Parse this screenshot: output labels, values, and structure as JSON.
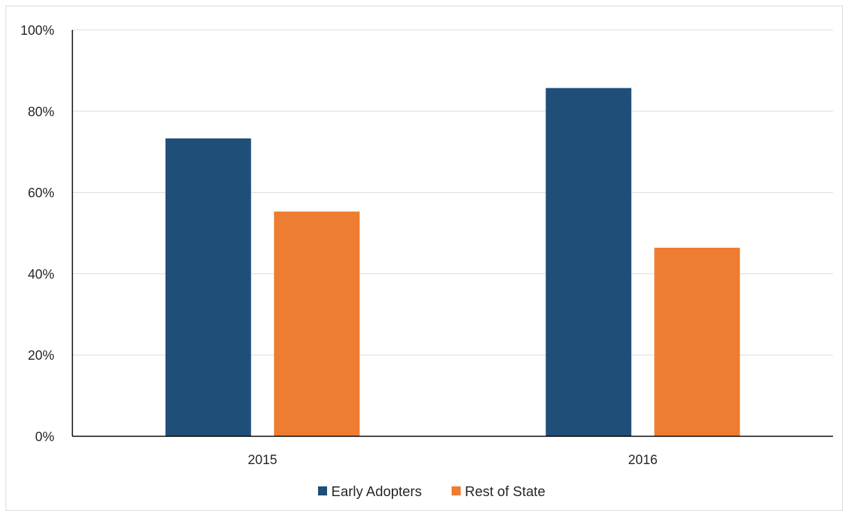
{
  "chart_data": {
    "type": "bar",
    "categories": [
      "2015",
      "2016"
    ],
    "series": [
      {
        "name": "Early Adopters",
        "values": [
          73.3,
          85.7
        ],
        "color": "#1f4e79"
      },
      {
        "name": "Rest of State",
        "values": [
          55.3,
          46.4
        ],
        "color": "#ed7d31"
      }
    ],
    "ylim": [
      0,
      100
    ],
    "yticks": [
      0,
      20,
      40,
      60,
      80,
      100
    ],
    "ytick_labels": [
      "0%",
      "20%",
      "40%",
      "60%",
      "80%",
      "100%"
    ],
    "title": "",
    "xlabel": "",
    "ylabel": "",
    "grid": true,
    "legend_position": "bottom"
  }
}
